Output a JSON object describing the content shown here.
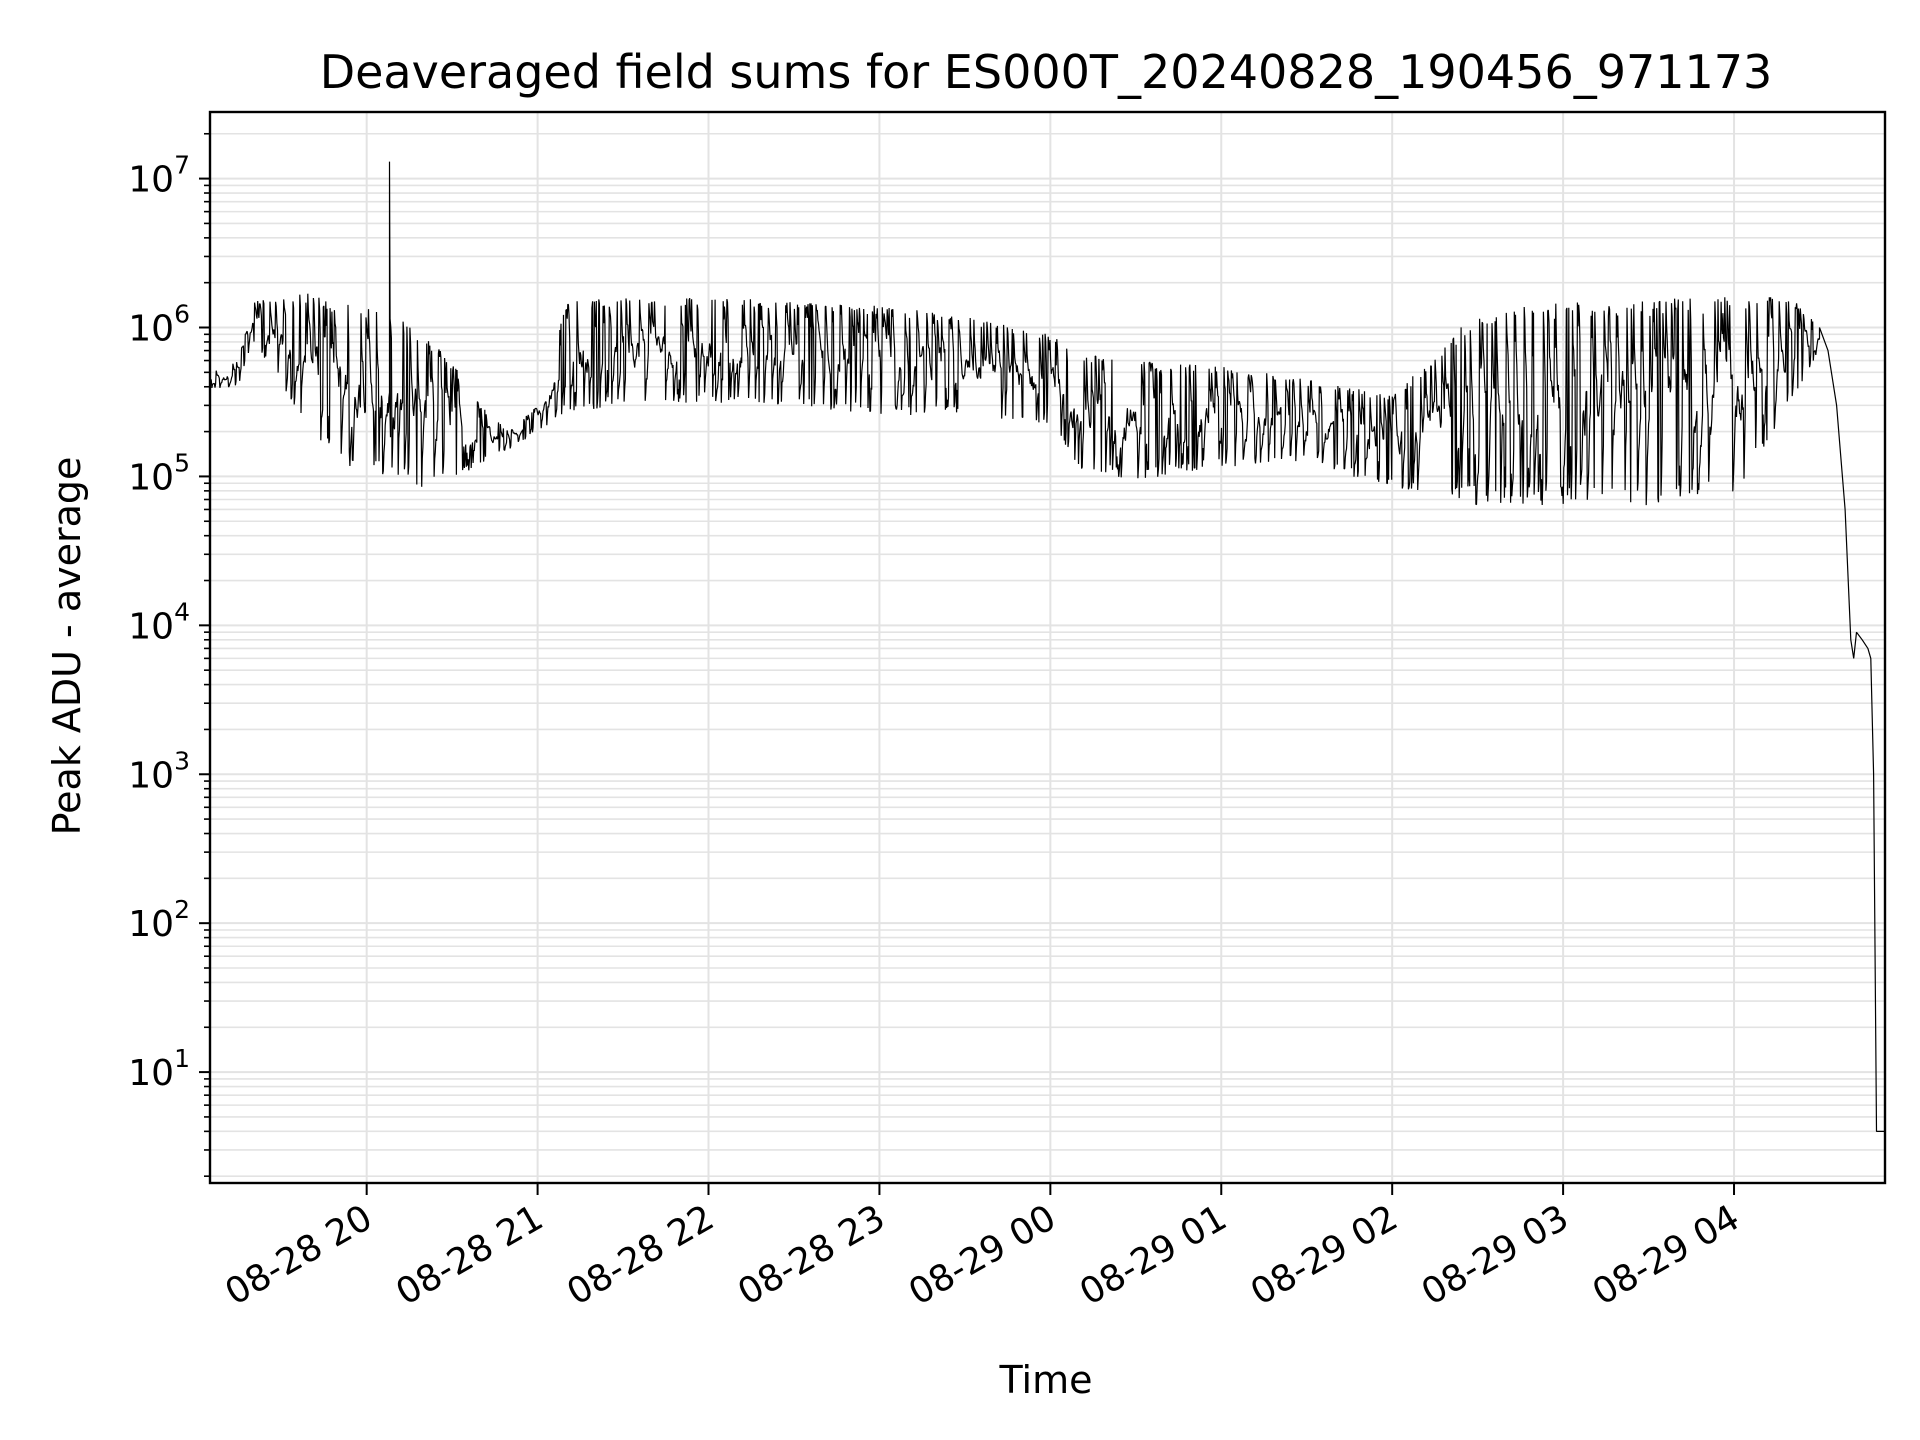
{
  "chart_data": {
    "type": "line",
    "title": "Deaveraged field sums for ES000T_20240828_190456_971173",
    "xlabel": "Time",
    "ylabel": "Peak ADU - average",
    "y_scale": "log",
    "ylim": [
      1.8,
      28000000
    ],
    "xlim": [
      "2024-08-28 19:05",
      "2024-08-29 04:53"
    ],
    "grid": true,
    "legend": "none",
    "line_color": "#000000",
    "grid_color": "#e3e3e3",
    "x_ticks": [
      {
        "value": "2024-08-28 20:00",
        "label": "08-28 20"
      },
      {
        "value": "2024-08-28 21:00",
        "label": "08-28 21"
      },
      {
        "value": "2024-08-28 22:00",
        "label": "08-28 22"
      },
      {
        "value": "2024-08-28 23:00",
        "label": "08-28 23"
      },
      {
        "value": "2024-08-29 00:00",
        "label": "08-29 00"
      },
      {
        "value": "2024-08-29 01:00",
        "label": "08-29 01"
      },
      {
        "value": "2024-08-29 02:00",
        "label": "08-29 02"
      },
      {
        "value": "2024-08-29 03:00",
        "label": "08-29 03"
      },
      {
        "value": "2024-08-29 04:00",
        "label": "08-29 04"
      }
    ],
    "y_ticks": [
      {
        "value": 10,
        "base": "10",
        "exp": "1"
      },
      {
        "value": 100,
        "base": "10",
        "exp": "2"
      },
      {
        "value": 1000,
        "base": "10",
        "exp": "3"
      },
      {
        "value": 10000,
        "base": "10",
        "exp": "4"
      },
      {
        "value": 100000,
        "base": "10",
        "exp": "5"
      },
      {
        "value": 1000000,
        "base": "10",
        "exp": "6"
      },
      {
        "value": 10000000,
        "base": "10",
        "exp": "7"
      }
    ],
    "series": [
      {
        "envelope_x": [
          "2024-08-28 19:05",
          "2024-08-28 19:15",
          "2024-08-28 19:20",
          "2024-08-28 19:30",
          "2024-08-28 19:40",
          "2024-08-28 19:50",
          "2024-08-28 20:00",
          "2024-08-28 20:10",
          "2024-08-28 20:20",
          "2024-08-28 20:30",
          "2024-08-28 20:40",
          "2024-08-28 20:50",
          "2024-08-28 21:00",
          "2024-08-28 21:10",
          "2024-08-28 21:30",
          "2024-08-28 22:00",
          "2024-08-28 22:30",
          "2024-08-28 23:00",
          "2024-08-28 23:30",
          "2024-08-29 00:00",
          "2024-08-29 00:10",
          "2024-08-29 00:30",
          "2024-08-29 01:00",
          "2024-08-29 01:30",
          "2024-08-29 02:00",
          "2024-08-29 02:30",
          "2024-08-29 03:00",
          "2024-08-29 03:30",
          "2024-08-29 04:00",
          "2024-08-29 04:20",
          "2024-08-29 04:30"
        ],
        "envelope_high": [
          500000,
          600000,
          1500000,
          1600000,
          1700000,
          1500000,
          1400000,
          1300000,
          900000,
          600000,
          300000,
          200000,
          300000,
          1500000,
          1600000,
          1600000,
          1500000,
          1400000,
          1200000,
          900000,
          700000,
          600000,
          550000,
          450000,
          350000,
          1300000,
          1500000,
          1550000,
          1600000,
          1600000,
          1000000
        ],
        "envelope_low": [
          380000,
          400000,
          800000,
          400000,
          200000,
          120000,
          100000,
          90000,
          80000,
          90000,
          120000,
          150000,
          200000,
          250000,
          300000,
          300000,
          280000,
          250000,
          240000,
          200000,
          100000,
          90000,
          110000,
          120000,
          80000,
          60000,
          60000,
          60000,
          70000,
          300000,
          700000
        ],
        "tail_x": [
          "2024-08-29 04:30",
          "2024-08-29 04:33",
          "2024-08-29 04:36",
          "2024-08-29 04:39",
          "2024-08-29 04:41",
          "2024-08-29 04:42",
          "2024-08-29 04:43",
          "2024-08-29 04:45",
          "2024-08-29 04:47",
          "2024-08-29 04:48",
          "2024-08-29 04:49",
          "2024-08-29 04:50",
          "2024-08-29 04:51",
          "2024-08-29 04:53"
        ],
        "tail_y": [
          1000000,
          700000,
          300000,
          60000,
          8000,
          6000,
          9000,
          8000,
          7000,
          6000,
          1000,
          4,
          4,
          4
        ],
        "spike": {
          "x": "2024-08-28 20:08",
          "y": 13000000
        }
      }
    ]
  }
}
